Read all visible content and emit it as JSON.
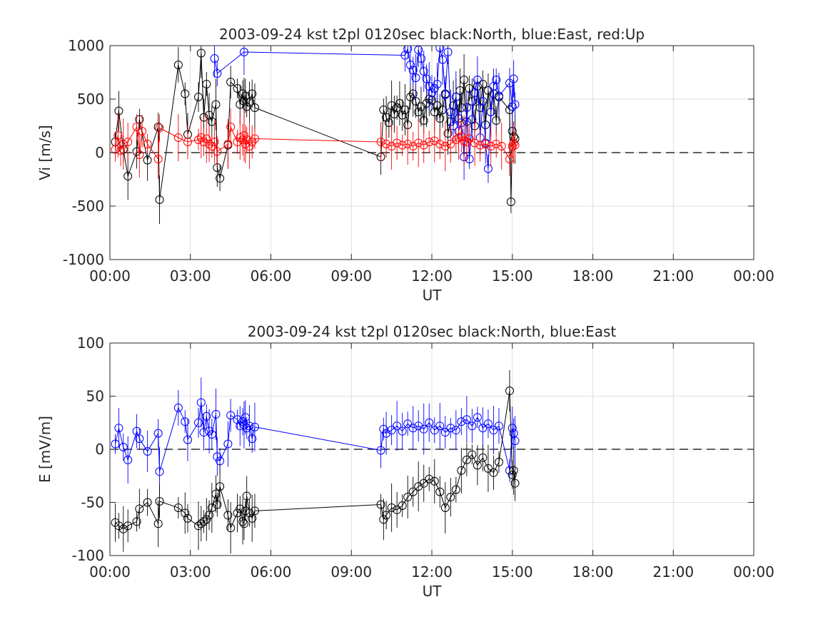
{
  "chart_data": [
    {
      "type": "scatter",
      "title": "2003-09-24 kst t2pl 0120sec black:North, blue:East, red:Up",
      "xlabel": "UT",
      "ylabel": "Vi [m/s]",
      "xlim": [
        0,
        24
      ],
      "ylim": [
        -1000,
        1000
      ],
      "xticks": [
        0,
        3,
        6,
        9,
        12,
        15,
        18,
        21,
        24
      ],
      "xtick_labels": [
        "00:00",
        "03:00",
        "06:00",
        "09:00",
        "12:00",
        "15:00",
        "18:00",
        "21:00",
        "00:00"
      ],
      "yticks": [
        -1000,
        -500,
        0,
        500,
        1000
      ],
      "ytick_labels": [
        "-1000",
        "-500",
        "0",
        "500",
        "1000"
      ],
      "grid": true,
      "zero_line": "dashed",
      "series": [
        {
          "color": "#000000",
          "x": [
            0.2,
            0.33,
            0.5,
            0.67,
            1.0,
            1.1,
            1.4,
            1.8,
            1.85,
            2.55,
            2.8,
            2.9,
            3.3,
            3.4,
            3.5,
            3.6,
            3.7,
            3.8,
            3.95,
            4.0,
            4.1,
            4.4,
            4.5,
            4.75,
            4.85,
            4.95,
            5.0,
            5.05,
            5.1,
            5.2,
            5.3,
            5.4,
            10.1,
            10.2,
            10.3,
            10.4,
            10.5,
            10.6,
            10.7,
            10.8,
            10.9,
            11.0,
            11.1,
            11.2,
            11.3,
            11.4,
            11.5,
            11.6,
            11.7,
            11.8,
            11.9,
            12.0,
            12.1,
            12.2,
            12.3,
            12.4,
            12.5,
            12.6,
            12.7,
            12.8,
            12.9,
            13.0,
            13.05,
            13.1,
            13.2,
            13.3,
            13.4,
            13.5,
            13.6,
            13.7,
            13.8,
            13.9,
            14.0,
            14.1,
            14.2,
            14.3,
            14.4,
            14.5,
            14.9,
            14.95,
            15.0,
            15.05,
            15.1
          ],
          "y": [
            100,
            390,
            30,
            -220,
            10,
            310,
            -70,
            240,
            -440,
            820,
            550,
            170,
            520,
            930,
            330,
            640,
            350,
            290,
            450,
            -140,
            -240,
            70,
            660,
            600,
            450,
            550,
            480,
            530,
            430,
            470,
            550,
            420,
            -40,
            400,
            330,
            280,
            440,
            360,
            420,
            460,
            350,
            400,
            260,
            520,
            550,
            480,
            380,
            430,
            300,
            460,
            500,
            490,
            380,
            440,
            320,
            400,
            550,
            180,
            290,
            440,
            520,
            320,
            580,
            420,
            680,
            290,
            600,
            480,
            250,
            620,
            420,
            640,
            260,
            580,
            380,
            550,
            300,
            520,
            400,
            -460,
            200,
            150,
            130
          ]
        },
        {
          "color": "#0000ff",
          "x": [
            3.9,
            4.0,
            5.0,
            11.0,
            11.1,
            11.2,
            11.3,
            11.4,
            11.5,
            11.6,
            11.7,
            11.8,
            11.9,
            12.0,
            12.1,
            12.2,
            12.3,
            12.4,
            12.5,
            12.6,
            12.7,
            12.8,
            12.9,
            13.0,
            13.1,
            13.2,
            13.3,
            13.4,
            13.5,
            13.6,
            13.7,
            13.8,
            13.9,
            14.0,
            14.1,
            14.2,
            14.3,
            14.4,
            14.5,
            14.9,
            15.0,
            15.05,
            15.1
          ],
          "y": [
            880,
            740,
            940,
            910,
            970,
            820,
            770,
            700,
            960,
            880,
            760,
            690,
            620,
            560,
            600,
            640,
            980,
            870,
            540,
            940,
            380,
            250,
            520,
            200,
            280,
            -40,
            420,
            -60,
            310,
            560,
            680,
            140,
            480,
            90,
            -150,
            380,
            620,
            680,
            530,
            650,
            430,
            690,
            450
          ]
        },
        {
          "color": "#ff0000",
          "x": [
            0.2,
            0.3,
            0.4,
            0.5,
            0.67,
            1.0,
            1.1,
            1.2,
            1.4,
            1.8,
            1.85,
            2.55,
            2.9,
            3.3,
            3.4,
            3.5,
            3.6,
            3.7,
            3.8,
            3.9,
            4.0,
            4.4,
            4.5,
            4.75,
            4.85,
            4.95,
            5.0,
            5.05,
            5.1,
            5.2,
            5.3,
            5.4,
            10.1,
            10.3,
            10.5,
            10.7,
            10.9,
            11.1,
            11.3,
            11.5,
            11.7,
            11.9,
            12.1,
            12.3,
            12.5,
            12.7,
            12.9,
            13.0,
            13.1,
            13.2,
            13.3,
            13.4,
            13.6,
            13.8,
            14.0,
            14.2,
            14.4,
            14.6,
            14.9,
            15.0,
            15.05,
            15.1
          ],
          "y": [
            30,
            160,
            20,
            80,
            100,
            240,
            -20,
            200,
            80,
            -60,
            230,
            140,
            100,
            120,
            140,
            100,
            130,
            80,
            60,
            100,
            10,
            80,
            240,
            100,
            140,
            120,
            160,
            80,
            120,
            60,
            100,
            130,
            100,
            80,
            60,
            90,
            70,
            80,
            60,
            90,
            70,
            100,
            110,
            80,
            60,
            80,
            120,
            140,
            150,
            110,
            100,
            130,
            90,
            70,
            80,
            60,
            80,
            60,
            -60,
            60,
            90,
            70
          ]
        }
      ]
    },
    {
      "type": "scatter",
      "title": "2003-09-24 kst t2pl 0120sec black:North, blue:East",
      "xlabel": "UT",
      "ylabel": "E [mV/m]",
      "xlim": [
        0,
        24
      ],
      "ylim": [
        -100,
        100
      ],
      "xticks": [
        0,
        3,
        6,
        9,
        12,
        15,
        18,
        21,
        24
      ],
      "xtick_labels": [
        "00:00",
        "03:00",
        "06:00",
        "09:00",
        "12:00",
        "15:00",
        "18:00",
        "21:00",
        "00:00"
      ],
      "yticks": [
        -100,
        -50,
        0,
        50,
        100
      ],
      "ytick_labels": [
        "-100",
        "-50",
        "0",
        "50",
        "100"
      ],
      "grid": true,
      "zero_line": "dashed",
      "series": [
        {
          "color": "#0000ff",
          "x": [
            0.2,
            0.33,
            0.5,
            0.67,
            1.0,
            1.1,
            1.4,
            1.8,
            1.85,
            2.55,
            2.8,
            2.9,
            3.3,
            3.4,
            3.5,
            3.6,
            3.7,
            3.8,
            3.95,
            4.0,
            4.1,
            4.4,
            4.5,
            4.75,
            4.85,
            4.95,
            5.0,
            5.05,
            5.1,
            5.2,
            5.3,
            5.4,
            10.1,
            10.2,
            10.3,
            10.5,
            10.7,
            10.9,
            11.1,
            11.3,
            11.5,
            11.7,
            11.9,
            12.1,
            12.3,
            12.5,
            12.7,
            12.9,
            13.1,
            13.3,
            13.5,
            13.7,
            13.9,
            14.1,
            14.3,
            14.5,
            14.9,
            15.0,
            15.05,
            15.1
          ],
          "y": [
            5,
            20,
            2,
            -10,
            17,
            10,
            -2,
            15,
            -21,
            39,
            26,
            9,
            25,
            44,
            16,
            31,
            17,
            14,
            33,
            -7,
            -11,
            5,
            32,
            28,
            22,
            26,
            23,
            30,
            20,
            22,
            10,
            21,
            -1,
            19,
            15,
            18,
            22,
            17,
            24,
            20,
            22,
            19,
            25,
            18,
            22,
            16,
            20,
            18,
            26,
            28,
            22,
            30,
            20,
            24,
            18,
            22,
            -20,
            20,
            15,
            8
          ]
        },
        {
          "color": "#000000",
          "x": [
            0.2,
            0.33,
            0.5,
            0.67,
            1.0,
            1.1,
            1.4,
            1.8,
            1.85,
            2.55,
            2.8,
            2.9,
            3.3,
            3.4,
            3.5,
            3.6,
            3.7,
            3.8,
            3.95,
            4.0,
            4.1,
            4.4,
            4.5,
            4.75,
            4.85,
            4.95,
            5.0,
            5.05,
            5.1,
            5.2,
            5.3,
            5.4,
            10.1,
            10.2,
            10.3,
            10.5,
            10.7,
            10.9,
            11.1,
            11.3,
            11.5,
            11.7,
            11.9,
            12.1,
            12.3,
            12.5,
            12.7,
            12.9,
            13.1,
            13.3,
            13.5,
            13.7,
            13.9,
            14.1,
            14.3,
            14.5,
            14.9,
            15.0,
            15.05,
            15.1
          ],
          "y": [
            -69,
            -72,
            -75,
            -72,
            -68,
            -56,
            -50,
            -70,
            -49,
            -55,
            -60,
            -65,
            -72,
            -70,
            -68,
            -66,
            -62,
            -55,
            -42,
            -52,
            -35,
            -62,
            -74,
            -60,
            -56,
            -68,
            -70,
            -58,
            -44,
            -60,
            -65,
            -58,
            -52,
            -66,
            -62,
            -55,
            -57,
            -53,
            -45,
            -40,
            -35,
            -32,
            -28,
            -30,
            -40,
            -55,
            -45,
            -38,
            -20,
            -10,
            -5,
            -15,
            -8,
            -18,
            -22,
            -12,
            55,
            -24,
            -20,
            -32
          ]
        }
      ]
    }
  ]
}
